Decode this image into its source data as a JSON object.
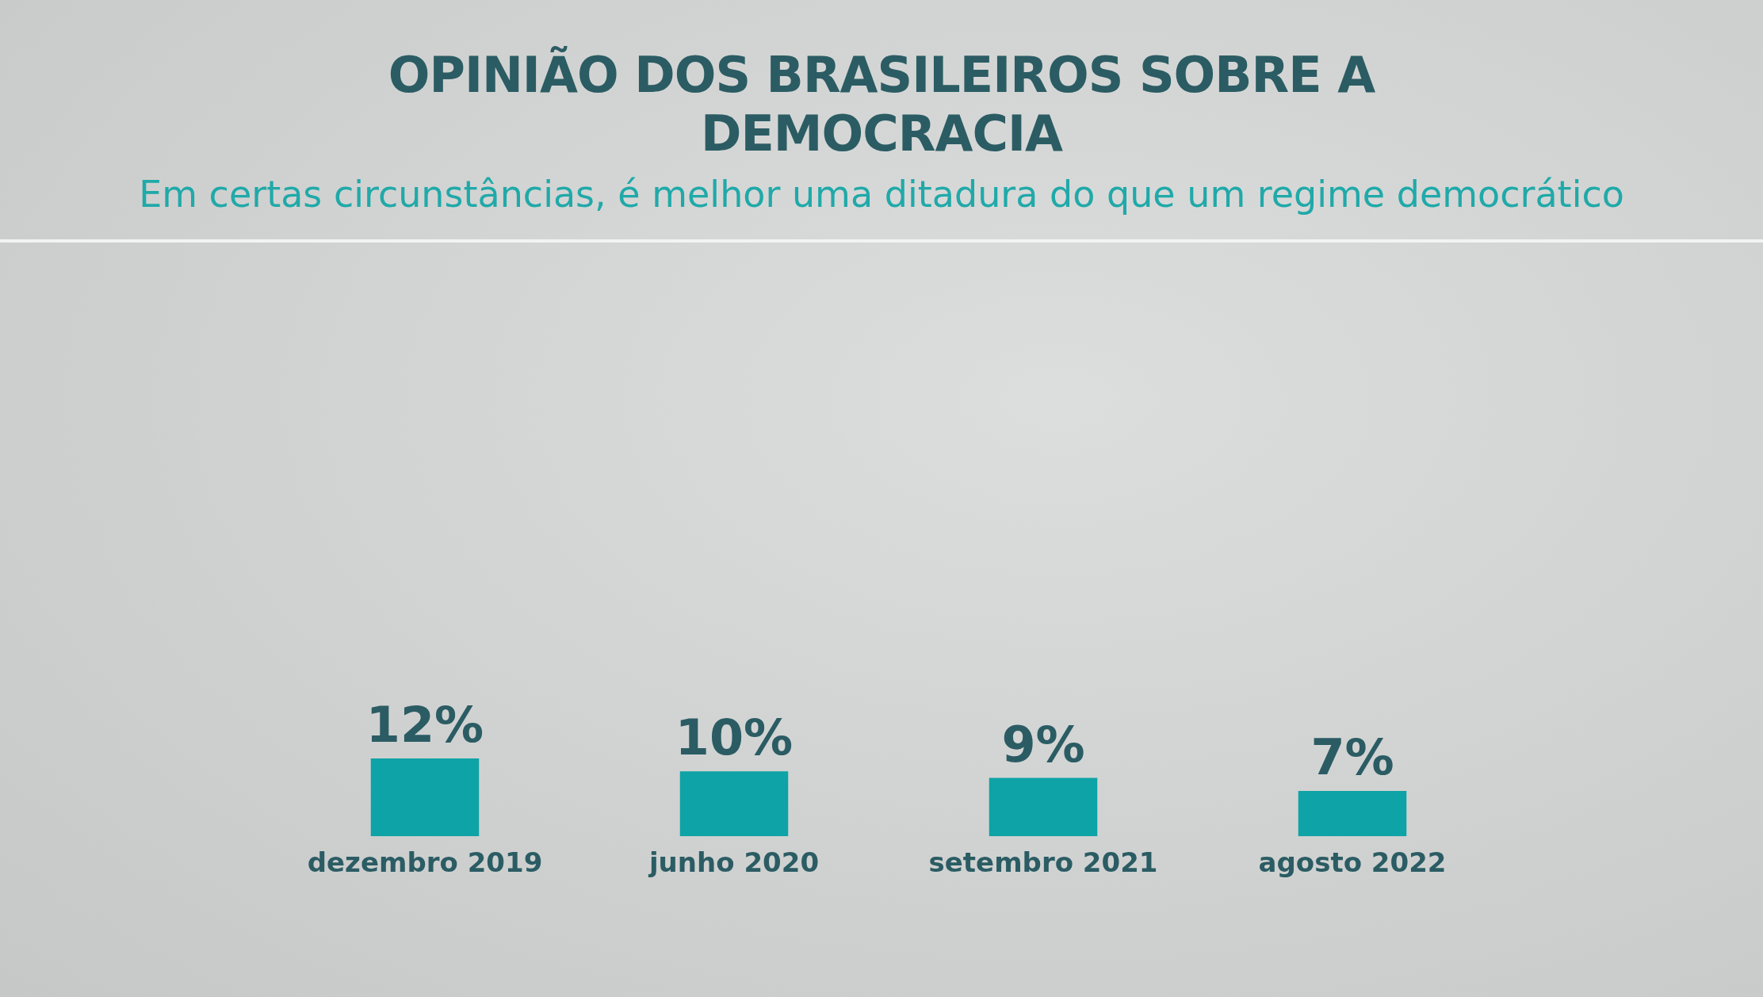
{
  "chart_data": {
    "type": "bar",
    "title": "OPINIÃO DOS BRASILEIROS SOBRE A DEMOCRACIA",
    "subtitle": "Em certas circunstâncias, é melhor uma ditadura do que um regime democrático",
    "categories": [
      "dezembro 2019",
      "junho 2020",
      "setembro 2021",
      "agosto 2022"
    ],
    "values": [
      12,
      10,
      9,
      7
    ],
    "color": "#0ea3a6",
    "value_labels": [
      "12%",
      "10%",
      "9%",
      "7%"
    ]
  }
}
